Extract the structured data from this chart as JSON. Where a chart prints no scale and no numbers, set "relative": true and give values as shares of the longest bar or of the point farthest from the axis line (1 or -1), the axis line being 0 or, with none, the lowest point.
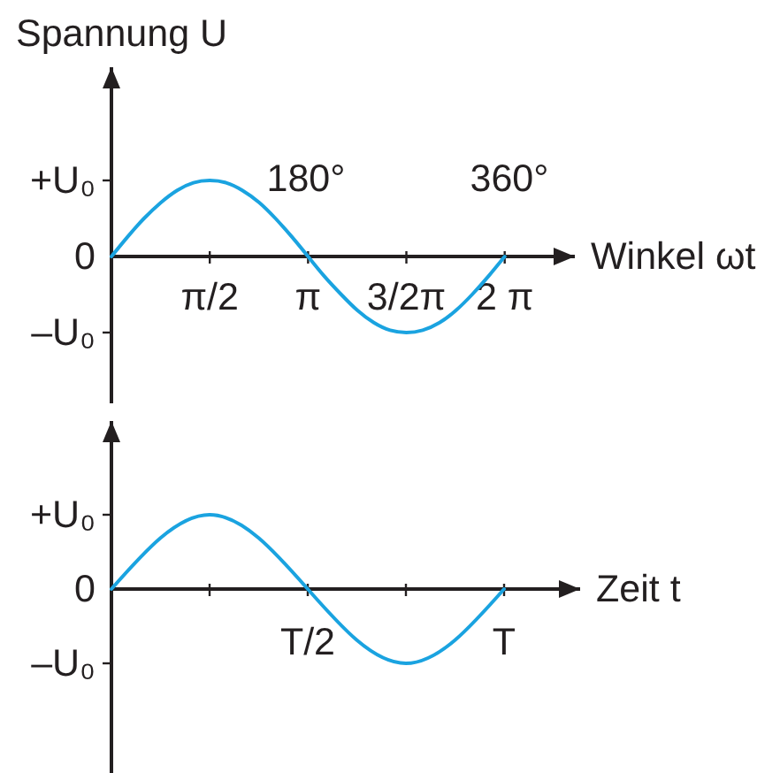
{
  "chart_data": [
    {
      "type": "line",
      "relative": true,
      "ylabel": "Spannung U",
      "xlabel": "Winkel ωt",
      "color": "#1aa3e0",
      "x": [
        0,
        0.26,
        0.52,
        0.79,
        1.05,
        1.31,
        1.57,
        1.83,
        2.09,
        2.36,
        2.62,
        2.88,
        3.14,
        3.4,
        3.67,
        3.93,
        4.19,
        4.45,
        4.71,
        4.97,
        5.24,
        5.5,
        5.76,
        6.02,
        6.28
      ],
      "values": [
        0,
        0.26,
        0.5,
        0.71,
        0.87,
        0.97,
        1,
        0.97,
        0.87,
        0.71,
        0.5,
        0.26,
        0,
        -0.26,
        -0.5,
        -0.71,
        -0.87,
        -0.97,
        -1,
        -0.97,
        -0.87,
        -0.71,
        -0.5,
        -0.26,
        0
      ],
      "xlim": [
        0,
        7.4
      ],
      "xticks": [
        {
          "value": 1.57,
          "label": "π/2"
        },
        {
          "value": 3.14,
          "label": "π"
        },
        {
          "value": 4.71,
          "label": "3/2π"
        },
        {
          "value": 6.28,
          "label": "2 π"
        }
      ],
      "annotations": [
        "+U₀",
        "0",
        "–U₀",
        "180°",
        "360°"
      ]
    },
    {
      "type": "line",
      "relative": true,
      "xlabel": "Zeit t",
      "color": "#1aa3e0",
      "categories": [
        null,
        null,
        "T/2",
        null,
        "T"
      ],
      "values": [
        0,
        1,
        0,
        -1,
        0
      ],
      "annotations": [
        "+U₀",
        "0",
        "–U₀"
      ]
    }
  ]
}
